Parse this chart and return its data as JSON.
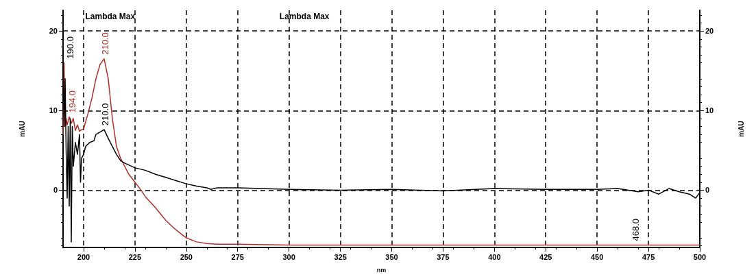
{
  "chart_data": {
    "type": "line",
    "xlabel": "nm",
    "ylabel": "mAU",
    "y2label": "mAU",
    "xlim": [
      190,
      500
    ],
    "xticks": [
      200,
      225,
      250,
      275,
      300,
      325,
      350,
      375,
      400,
      425,
      450,
      475,
      500
    ],
    "ylim": [
      -7.2,
      22.6
    ],
    "yticks": [
      0,
      10,
      20
    ],
    "y2lim": [
      -7.2,
      22.6
    ],
    "y2ticks": [
      0,
      10,
      20
    ],
    "grid": true,
    "marker": "none",
    "line_style": "solid",
    "series": [
      {
        "color": "#b03028",
        "x": [
          190,
          190.5,
          191,
          191.5,
          192,
          193,
          194,
          195,
          196,
          197,
          198,
          199,
          200,
          202,
          204,
          206,
          208,
          210,
          212,
          214,
          216,
          218,
          220,
          222,
          225,
          228,
          230,
          235,
          240,
          245,
          250,
          255,
          260,
          265,
          275,
          300,
          350,
          400,
          450,
          500
        ],
        "values": [
          7,
          16,
          8,
          9,
          8.2,
          9.2,
          8.4,
          9,
          7.5,
          8.2,
          7.4,
          7.6,
          7.7,
          9.5,
          11.5,
          14,
          15.8,
          16.5,
          14,
          9,
          5.5,
          4,
          3,
          2,
          1,
          0,
          -0.8,
          -2.2,
          -3.8,
          -5,
          -6,
          -6.5,
          -6.7,
          -6.8,
          -6.8,
          -6.9,
          -6.9,
          -6.9,
          -6.9,
          -6.9
        ]
      },
      {
        "color": "#000000",
        "x": [
          190,
          190.5,
          191,
          191.5,
          192,
          192.5,
          193,
          193.5,
          194,
          194.5,
          195,
          196,
          197,
          198,
          198.5,
          199,
          200,
          201,
          203,
          205,
          206,
          208,
          210,
          212,
          214,
          216,
          218,
          220,
          225,
          230,
          235,
          240,
          245,
          250,
          255,
          260,
          262,
          265,
          275,
          300,
          325,
          350,
          375,
          400,
          425,
          450,
          460,
          470,
          475,
          480,
          485,
          490,
          495,
          498,
          500
        ],
        "values": [
          16,
          8,
          14,
          5,
          -1,
          8,
          -2,
          9,
          -6.5,
          8,
          3,
          6,
          4.5,
          7,
          1,
          4,
          4.5,
          5.5,
          6,
          6.2,
          7,
          7.3,
          7.6,
          6.5,
          5.5,
          4.5,
          3.7,
          3.4,
          2.8,
          2.5,
          2,
          1.6,
          1.2,
          0.8,
          0.5,
          0.3,
          0.1,
          0.3,
          0.3,
          0.1,
          0,
          0.1,
          -0.1,
          0.2,
          0.1,
          0.1,
          0.2,
          -0.2,
          0,
          -0.5,
          0.2,
          -0.2,
          -0.5,
          -1,
          -0.3
        ]
      }
    ],
    "annotations": [
      "Lambda Max",
      "Lambda Max",
      {
        "text": "210.0",
        "x": 210,
        "y": 16.5
      },
      {
        "text": "210.0",
        "x": 210,
        "y": 7.6
      },
      {
        "text": "194.0",
        "x": 194,
        "y": 9.2
      },
      {
        "text": "190.0",
        "x": 190,
        "y": 16
      },
      {
        "text": "468.0",
        "x": 468,
        "y": -6.9
      }
    ]
  }
}
